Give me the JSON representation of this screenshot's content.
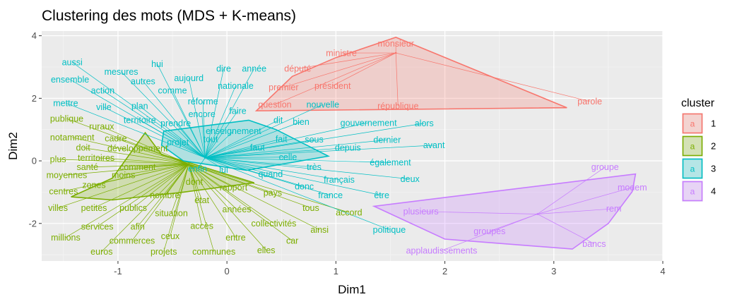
{
  "chart_data": {
    "type": "scatter",
    "title": "Clustering des mots (MDS + K-means)",
    "xlabel": "Dim1",
    "ylabel": "Dim2",
    "xlim": [
      -1.7,
      4.0
    ],
    "ylim": [
      -3.2,
      4.15
    ],
    "xticks": [
      -1,
      0,
      1,
      2,
      3,
      4
    ],
    "xtick_labels": [
      "-1",
      "0",
      "1",
      "2",
      "3",
      "4"
    ],
    "yticks": [
      -2,
      0,
      2,
      4
    ],
    "ytick_labels": [
      "-2",
      "0",
      "2",
      "4"
    ],
    "grid": true,
    "legend": {
      "title": "cluster",
      "position": "right",
      "key_letter": "a"
    },
    "series": [
      {
        "name": "1",
        "color": "#F8766D",
        "hull": [
          [
            0.27,
            1.6
          ],
          [
            0.6,
            2.7
          ],
          [
            1.0,
            3.3
          ],
          [
            1.55,
            3.95
          ],
          [
            3.12,
            1.7
          ],
          [
            0.27,
            1.6
          ]
        ],
        "segment_origin": [
          1.55,
          3.45
        ],
        "points": [
          {
            "label": "monsieur",
            "x": 1.55,
            "y": 3.75
          },
          {
            "label": "ministre",
            "x": 1.05,
            "y": 3.45
          },
          {
            "label": "député",
            "x": 0.65,
            "y": 2.95
          },
          {
            "label": "président",
            "x": 0.97,
            "y": 2.4
          },
          {
            "label": "premier",
            "x": 0.52,
            "y": 2.35
          },
          {
            "label": "question",
            "x": 0.44,
            "y": 1.8
          },
          {
            "label": "république",
            "x": 1.57,
            "y": 1.75
          },
          {
            "label": "parole",
            "x": 3.33,
            "y": 1.9
          }
        ]
      },
      {
        "name": "2",
        "color": "#7CAE00",
        "hull": [
          [
            -0.75,
            0.9
          ],
          [
            -0.6,
            0.2
          ],
          [
            -0.4,
            0.0
          ],
          [
            0.25,
            -0.7
          ],
          [
            -0.4,
            -1.0
          ],
          [
            -1.05,
            -1.25
          ],
          [
            -1.43,
            -1.15
          ],
          [
            -1.05,
            -0.55
          ],
          [
            -0.75,
            0.9
          ]
        ],
        "segment_origin": [
          -0.35,
          -0.1
        ],
        "points": [
          {
            "label": "publique",
            "x": -1.47,
            "y": 1.35
          },
          {
            "label": "ruraux",
            "x": -1.15,
            "y": 1.1
          },
          {
            "label": "notamment",
            "x": -1.42,
            "y": 0.75
          },
          {
            "label": "cadre",
            "x": -1.02,
            "y": 0.72
          },
          {
            "label": "doit",
            "x": -1.32,
            "y": 0.42
          },
          {
            "label": "développement",
            "x": -0.82,
            "y": 0.4
          },
          {
            "label": "territoires",
            "x": -1.2,
            "y": 0.1
          },
          {
            "label": "plus",
            "x": -1.55,
            "y": 0.05
          },
          {
            "label": "santé",
            "x": -1.28,
            "y": -0.2
          },
          {
            "label": "comment",
            "x": -0.82,
            "y": -0.2
          },
          {
            "label": "moyennes",
            "x": -1.47,
            "y": -0.45
          },
          {
            "label": "moins",
            "x": -0.95,
            "y": -0.45
          },
          {
            "label": "zones",
            "x": -1.22,
            "y": -0.77
          },
          {
            "label": "centres",
            "x": -1.5,
            "y": -0.97
          },
          {
            "label": "nombre",
            "x": -0.57,
            "y": -1.1
          },
          {
            "label": "villes",
            "x": -1.55,
            "y": -1.5
          },
          {
            "label": "petites",
            "x": -1.22,
            "y": -1.5
          },
          {
            "label": "publics",
            "x": -0.86,
            "y": -1.5
          },
          {
            "label": "situation",
            "x": -0.51,
            "y": -1.67
          },
          {
            "label": "services",
            "x": -1.19,
            "y": -2.1
          },
          {
            "label": "afin",
            "x": -0.82,
            "y": -2.1
          },
          {
            "label": "ceux",
            "x": -0.52,
            "y": -2.4
          },
          {
            "label": "millions",
            "x": -1.48,
            "y": -2.45
          },
          {
            "label": "commerces",
            "x": -0.87,
            "y": -2.55
          },
          {
            "label": "euros",
            "x": -1.15,
            "y": -2.9
          },
          {
            "label": "projets",
            "x": -0.58,
            "y": -2.9
          },
          {
            "label": "communes",
            "x": -0.12,
            "y": -2.9
          },
          {
            "label": "entre",
            "x": 0.08,
            "y": -2.45
          },
          {
            "label": "accès",
            "x": -0.23,
            "y": -2.08
          },
          {
            "label": "état",
            "x": -0.23,
            "y": -1.25
          },
          {
            "label": "années",
            "x": 0.09,
            "y": -1.55
          },
          {
            "label": "collectivités",
            "x": 0.43,
            "y": -2.0
          },
          {
            "label": "elles",
            "x": 0.36,
            "y": -2.85
          },
          {
            "label": "car",
            "x": 0.6,
            "y": -2.55
          },
          {
            "label": "ainsi",
            "x": 0.85,
            "y": -2.2
          },
          {
            "label": "tous",
            "x": 0.77,
            "y": -1.5
          },
          {
            "label": "accord",
            "x": 1.12,
            "y": -1.65
          },
          {
            "label": "pays",
            "x": 0.42,
            "y": -1.02
          },
          {
            "label": "dont",
            "x": -0.3,
            "y": -0.67
          },
          {
            "label": "rapport",
            "x": 0.06,
            "y": -0.85
          }
        ]
      },
      {
        "name": "3",
        "color": "#00BFC4",
        "hull": [
          [
            -0.6,
            0.5
          ],
          [
            -0.58,
            0.95
          ],
          [
            0.2,
            1.3
          ],
          [
            0.45,
            1.0
          ],
          [
            0.93,
            0.15
          ],
          [
            0.18,
            -0.3
          ],
          [
            -0.4,
            0.0
          ],
          [
            -0.6,
            0.5
          ]
        ],
        "segment_origin": [
          -0.2,
          0.1
        ],
        "points": [
          {
            "label": "aussi",
            "x": -1.42,
            "y": 3.15
          },
          {
            "label": "mesures",
            "x": -0.97,
            "y": 2.85
          },
          {
            "label": "hui",
            "x": -0.64,
            "y": 3.1
          },
          {
            "label": "dire",
            "x": -0.03,
            "y": 2.95
          },
          {
            "label": "année",
            "x": 0.25,
            "y": 2.95
          },
          {
            "label": "ensemble",
            "x": -1.44,
            "y": 2.6
          },
          {
            "label": "autres",
            "x": -0.77,
            "y": 2.55
          },
          {
            "label": "aujourd",
            "x": -0.35,
            "y": 2.65
          },
          {
            "label": "nationale",
            "x": 0.08,
            "y": 2.4
          },
          {
            "label": "action",
            "x": -1.14,
            "y": 2.25
          },
          {
            "label": "comme",
            "x": -0.5,
            "y": 2.25
          },
          {
            "label": "réforme",
            "x": -0.22,
            "y": 1.9
          },
          {
            "label": "mettre",
            "x": -1.48,
            "y": 1.85
          },
          {
            "label": "plan",
            "x": -0.8,
            "y": 1.75
          },
          {
            "label": "ville",
            "x": -1.13,
            "y": 1.72
          },
          {
            "label": "encore",
            "x": -0.23,
            "y": 1.5
          },
          {
            "label": "faire",
            "x": 0.1,
            "y": 1.6
          },
          {
            "label": "nouvelle",
            "x": 0.88,
            "y": 1.8
          },
          {
            "label": "territoire",
            "x": -0.8,
            "y": 1.3
          },
          {
            "label": "prendre",
            "x": -0.47,
            "y": 1.2
          },
          {
            "label": "dit",
            "x": 0.47,
            "y": 1.3
          },
          {
            "label": "bien",
            "x": 0.68,
            "y": 1.25
          },
          {
            "label": "gouvernement",
            "x": 1.3,
            "y": 1.22
          },
          {
            "label": "alors",
            "x": 1.81,
            "y": 1.2
          },
          {
            "label": "enseignement",
            "x": 0.06,
            "y": 0.95
          },
          {
            "label": "projet",
            "x": -0.45,
            "y": 0.6
          },
          {
            "label": "tout",
            "x": -0.15,
            "y": 0.7
          },
          {
            "label": "fait",
            "x": 0.5,
            "y": 0.7
          },
          {
            "label": "sous",
            "x": 0.8,
            "y": 0.68
          },
          {
            "label": "dernier",
            "x": 1.47,
            "y": 0.67
          },
          {
            "label": "faut",
            "x": 0.28,
            "y": 0.42
          },
          {
            "label": "depuis",
            "x": 1.11,
            "y": 0.42
          },
          {
            "label": "avant",
            "x": 1.9,
            "y": 0.5
          },
          {
            "label": "celle",
            "x": 0.56,
            "y": 0.12
          },
          {
            "label": "également",
            "x": 1.5,
            "y": -0.05
          },
          {
            "label": "très",
            "x": 0.8,
            "y": -0.2
          },
          {
            "label": "enfin",
            "x": -0.27,
            "y": -0.25
          },
          {
            "label": "lui",
            "x": -0.03,
            "y": -0.28
          },
          {
            "label": "quand",
            "x": 0.4,
            "y": -0.42
          },
          {
            "label": "français",
            "x": 1.03,
            "y": -0.6
          },
          {
            "label": "deux",
            "x": 1.68,
            "y": -0.58
          },
          {
            "label": "donc",
            "x": 0.71,
            "y": -0.82
          },
          {
            "label": "france",
            "x": 0.95,
            "y": -1.1
          },
          {
            "label": "être",
            "x": 1.42,
            "y": -1.1
          },
          {
            "label": "politique",
            "x": 1.49,
            "y": -2.2
          }
        ]
      },
      {
        "name": "4",
        "color": "#C77CFF",
        "hull": [
          [
            1.35,
            -1.45
          ],
          [
            2.0,
            -2.5
          ],
          [
            3.17,
            -2.82
          ],
          [
            3.5,
            -2.0
          ],
          [
            3.72,
            -0.98
          ],
          [
            3.75,
            -0.42
          ],
          [
            1.35,
            -1.45
          ]
        ],
        "segment_origin": [
          2.85,
          -1.7
        ],
        "points": [
          {
            "label": "groupe",
            "x": 3.47,
            "y": -0.2
          },
          {
            "label": "modem",
            "x": 3.72,
            "y": -0.85
          },
          {
            "label": "rem",
            "x": 3.55,
            "y": -1.53
          },
          {
            "label": "plusieurs",
            "x": 1.78,
            "y": -1.62
          },
          {
            "label": "groupes",
            "x": 2.41,
            "y": -2.25
          },
          {
            "label": "bancs",
            "x": 3.37,
            "y": -2.65
          },
          {
            "label": "applaudissements",
            "x": 1.97,
            "y": -2.87
          }
        ]
      }
    ]
  }
}
